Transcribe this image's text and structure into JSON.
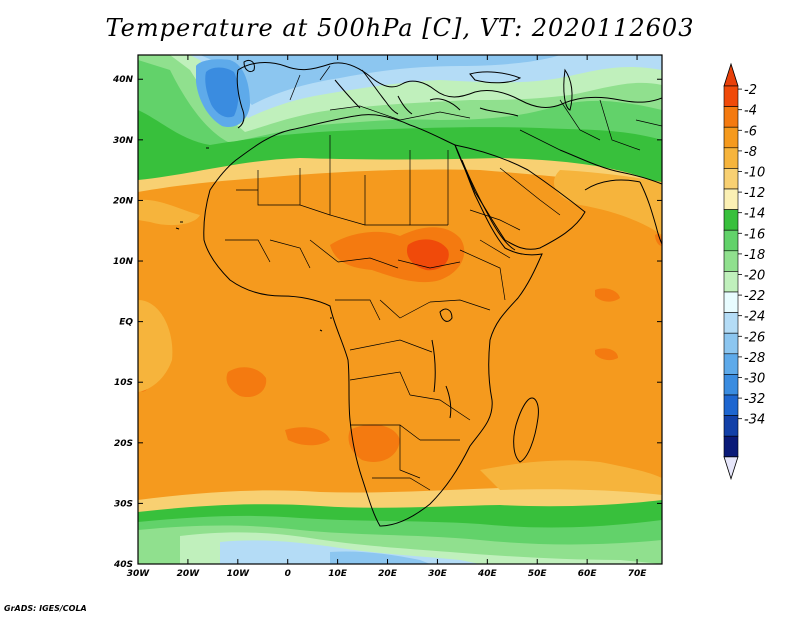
{
  "title": "Temperature at 500hPa [C], VT: 2020112603",
  "credit": "GrADS: IGES/COLA",
  "map": {
    "lat_labels": [
      "40N",
      "30N",
      "20N",
      "10N",
      "EQ",
      "10S",
      "20S",
      "30S",
      "40S"
    ],
    "lon_labels": [
      "30W",
      "20W",
      "10W",
      "0",
      "10E",
      "20E",
      "30E",
      "40E",
      "50E",
      "60E",
      "70E"
    ],
    "extent": {
      "lon_min": -30,
      "lon_max": 75,
      "lat_min": -40,
      "lat_max": 44
    }
  },
  "colorbar": {
    "labels": [
      "-2",
      "-4",
      "-6",
      "-8",
      "-10",
      "-12",
      "-14",
      "-16",
      "-18",
      "-20",
      "-22",
      "-24",
      "-26",
      "-28",
      "-30",
      "-32",
      "-34"
    ],
    "colors": [
      "#f04a0a",
      "#f47a10",
      "#f59a1e",
      "#f6b43c",
      "#f8d072",
      "#fbf0b4",
      "#38c03c",
      "#62d26a",
      "#90e08e",
      "#c0f0bc",
      "#e8fcff",
      "#b4dcf6",
      "#8cc6f0",
      "#5eaaea",
      "#3a8ce0",
      "#1e66d0",
      "#1240a8",
      "#0a1a78",
      "#e6e6fa"
    ],
    "top_arrow_color": "#e8400a",
    "bottom_arrow_color": "#e6e6fa"
  }
}
